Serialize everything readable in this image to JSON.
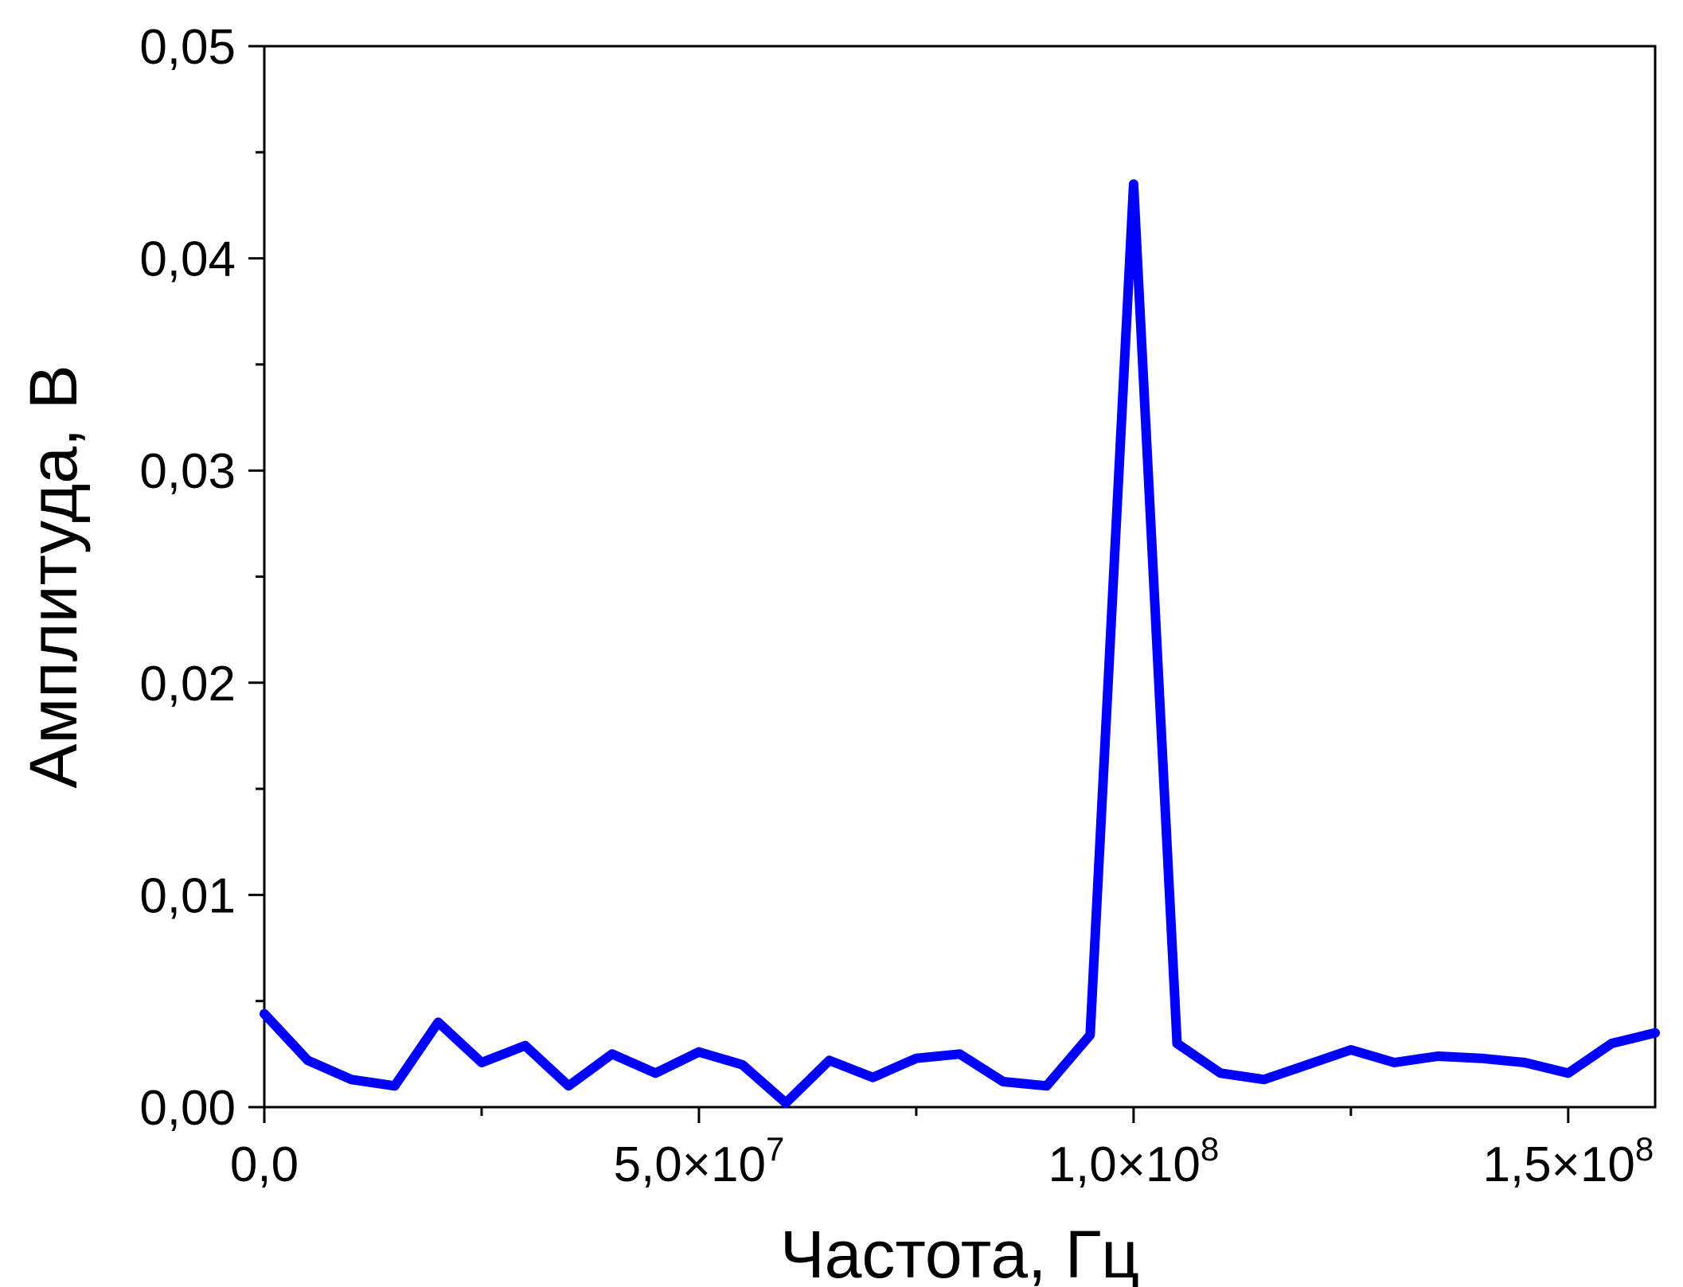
{
  "chart_data": {
    "type": "line",
    "title": "",
    "xlabel": "Частота, Гц",
    "ylabel": "Амплитуда, В",
    "xlim": [
      0,
      160000000
    ],
    "ylim": [
      0,
      0.05
    ],
    "x_ticks": [
      {
        "value": 0,
        "label": "0,0"
      },
      {
        "value": 50000000,
        "label": "5,0×10",
        "exp": "7"
      },
      {
        "value": 100000000,
        "label": "1,0×10",
        "exp": "8"
      },
      {
        "value": 150000000,
        "label": "1,5×10",
        "exp": "8"
      }
    ],
    "y_ticks": [
      {
        "value": 0,
        "label": "0,00"
      },
      {
        "value": 0.01,
        "label": "0,01"
      },
      {
        "value": 0.02,
        "label": "0,02"
      },
      {
        "value": 0.03,
        "label": "0,03"
      },
      {
        "value": 0.04,
        "label": "0,04"
      },
      {
        "value": 0.05,
        "label": "0,05"
      }
    ],
    "x_minor_ticks": [
      25000000,
      75000000,
      125000000
    ],
    "y_minor_ticks": [
      0.005,
      0.015,
      0.025,
      0.035,
      0.045
    ],
    "grid": false,
    "legend": "none",
    "series": [
      {
        "color": "#0000ff",
        "x": [
          0,
          5000000,
          10000000,
          15000000,
          20000000,
          25000000,
          30000000,
          35000000,
          40000000,
          45000000,
          50000000,
          55000000,
          60000000,
          65000000,
          70000000,
          75000000,
          80000000,
          85000000,
          90000000,
          95000000,
          100000000,
          105000000,
          110000000,
          115000000,
          120000000,
          125000000,
          130000000,
          135000000,
          140000000,
          145000000,
          150000000,
          155000000,
          160000000
        ],
        "y": [
          0.0044,
          0.0022,
          0.0013,
          0.001,
          0.004,
          0.0021,
          0.0029,
          0.001,
          0.0025,
          0.0016,
          0.0026,
          0.002,
          0.0002,
          0.0022,
          0.0014,
          0.0023,
          0.0025,
          0.0012,
          0.001,
          0.0034,
          0.0435,
          0.003,
          0.0016,
          0.0013,
          0.002,
          0.0027,
          0.0021,
          0.0024,
          0.0023,
          0.0021,
          0.0016,
          0.003,
          0.0035
        ]
      }
    ]
  }
}
